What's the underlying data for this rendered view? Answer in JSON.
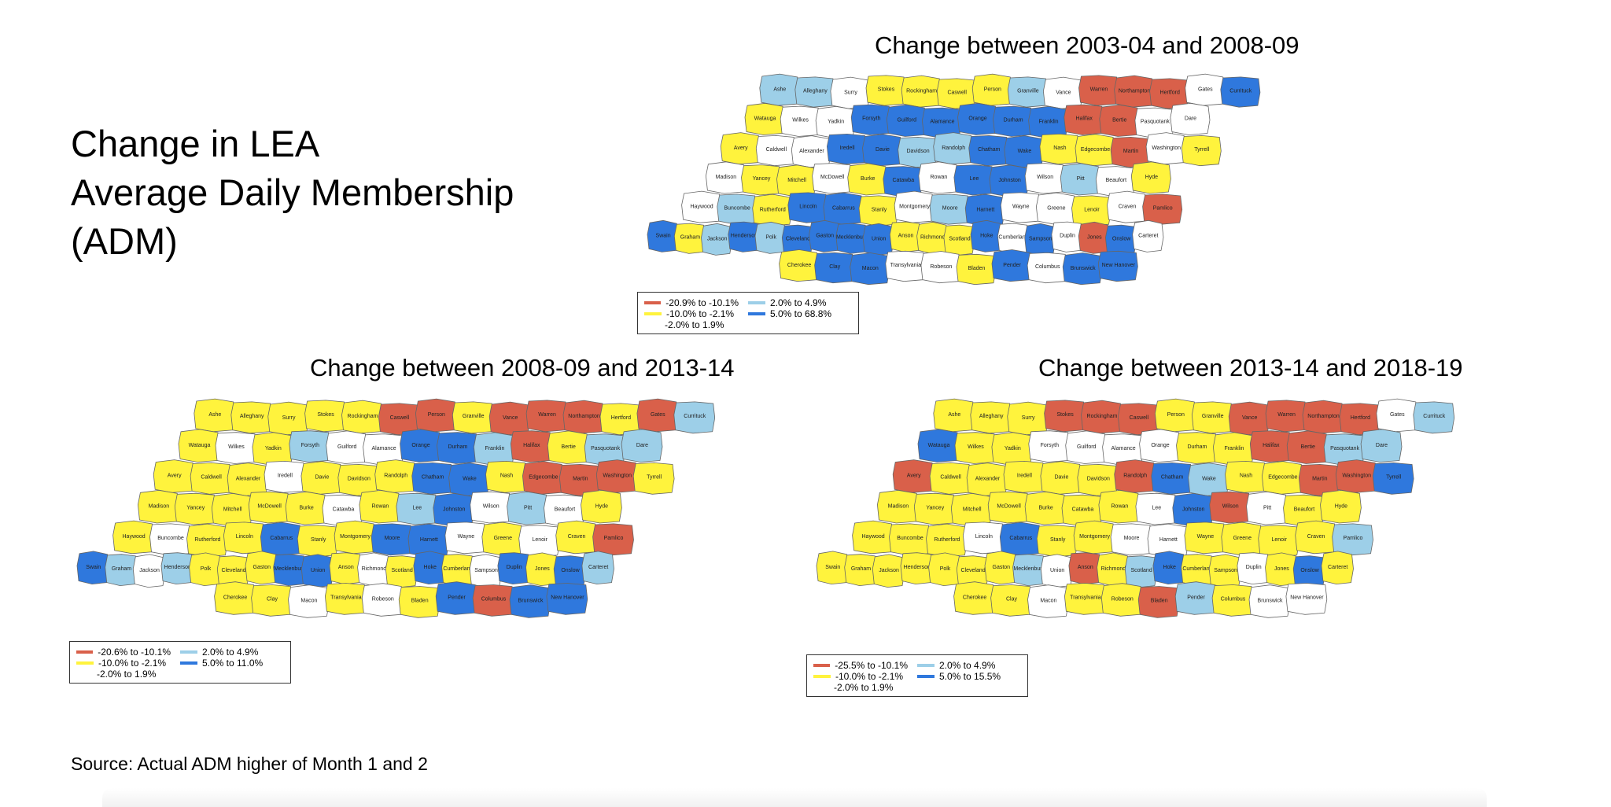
{
  "slide": {
    "title_lines": [
      "Change in LEA",
      "Average Daily Membership",
      "(ADM)"
    ],
    "source": "Source: Actual ADM higher of Month 1 and 2"
  },
  "colors": {
    "red": "#d9604a",
    "yellow": "#fff33d",
    "white": "#ffffff",
    "light_blue": "#9dcfe8",
    "blue": "#2f78dd"
  },
  "maps": [
    {
      "title": "Change between 2003-04 and  2008-09",
      "legend": {
        "red": "-20.9%  to  -10.1%",
        "light_blue": "2.0%  to  4.9%",
        "yellow": "-10.0%  to  -2.1%",
        "blue": "5.0%  to  68.8%",
        "white": "-2.0%  to  1.9%"
      },
      "counties": [
        [
          "Ashe",
          "L"
        ],
        [
          "Alleghany",
          "L"
        ],
        [
          "Surry",
          "W"
        ],
        [
          "Stokes",
          "Y"
        ],
        [
          "Rockingham",
          "Y"
        ],
        [
          "Caswell",
          "Y"
        ],
        [
          "Person",
          "Y"
        ],
        [
          "Granville",
          "L"
        ],
        [
          "Vance",
          "W"
        ],
        [
          "Warren",
          "R"
        ],
        [
          "Northampton",
          "R"
        ],
        [
          "Hertford",
          "R"
        ],
        [
          "Gates",
          "W"
        ],
        [
          "Currituck",
          "B"
        ],
        [
          "Watauga",
          "Y"
        ],
        [
          "Wilkes",
          "W"
        ],
        [
          "Yadkin",
          "W"
        ],
        [
          "Forsyth",
          "B"
        ],
        [
          "Guilford",
          "B"
        ],
        [
          "Alamance",
          "B"
        ],
        [
          "Orange",
          "B"
        ],
        [
          "Durham",
          "B"
        ],
        [
          "Franklin",
          "B"
        ],
        [
          "Halifax",
          "R"
        ],
        [
          "Bertie",
          "R"
        ],
        [
          "Pasquotank",
          "W"
        ],
        [
          "Dare",
          "W"
        ],
        [
          "Avery",
          "Y"
        ],
        [
          "Caldwell",
          "W"
        ],
        [
          "Alexander",
          "W"
        ],
        [
          "Iredell",
          "B"
        ],
        [
          "Davie",
          "B"
        ],
        [
          "Davidson",
          "L"
        ],
        [
          "Randolph",
          "L"
        ],
        [
          "Chatham",
          "B"
        ],
        [
          "Wake",
          "B"
        ],
        [
          "Nash",
          "Y"
        ],
        [
          "Edgecombe",
          "Y"
        ],
        [
          "Martin",
          "R"
        ],
        [
          "Washington",
          "W"
        ],
        [
          "Tyrrell",
          "Y"
        ],
        [
          "Madison",
          "W"
        ],
        [
          "Yancey",
          "Y"
        ],
        [
          "Mitchell",
          "Y"
        ],
        [
          "McDowell",
          "W"
        ],
        [
          "Burke",
          "Y"
        ],
        [
          "Catawba",
          "B"
        ],
        [
          "Rowan",
          "W"
        ],
        [
          "Lee",
          "B"
        ],
        [
          "Johnston",
          "B"
        ],
        [
          "Wilson",
          "W"
        ],
        [
          "Pitt",
          "L"
        ],
        [
          "Beaufort",
          "W"
        ],
        [
          "Hyde",
          "Y"
        ],
        [
          "Haywood",
          "W"
        ],
        [
          "Buncombe",
          "L"
        ],
        [
          "Rutherford",
          "Y"
        ],
        [
          "Lincoln",
          "B"
        ],
        [
          "Cabarrus",
          "B"
        ],
        [
          "Stanly",
          "Y"
        ],
        [
          "Montgomery",
          "W"
        ],
        [
          "Moore",
          "L"
        ],
        [
          "Harnett",
          "B"
        ],
        [
          "Wayne",
          "W"
        ],
        [
          "Greene",
          "W"
        ],
        [
          "Lenoir",
          "Y"
        ],
        [
          "Craven",
          "W"
        ],
        [
          "Pamlico",
          "R"
        ],
        [
          "Swain",
          "B"
        ],
        [
          "Graham",
          "Y"
        ],
        [
          "Jackson",
          "L"
        ],
        [
          "Henderson",
          "B"
        ],
        [
          "Polk",
          "L"
        ],
        [
          "Cleveland",
          "B"
        ],
        [
          "Gaston",
          "B"
        ],
        [
          "Mecklenburg",
          "B"
        ],
        [
          "Union",
          "B"
        ],
        [
          "Anson",
          "Y"
        ],
        [
          "Richmond",
          "Y"
        ],
        [
          "Scotland",
          "Y"
        ],
        [
          "Hoke",
          "B"
        ],
        [
          "Cumberland",
          "W"
        ],
        [
          "Sampson",
          "B"
        ],
        [
          "Duplin",
          "W"
        ],
        [
          "Jones",
          "R"
        ],
        [
          "Onslow",
          "B"
        ],
        [
          "Carteret",
          "W"
        ],
        [
          "Cherokee",
          "Y"
        ],
        [
          "Clay",
          "B"
        ],
        [
          "Macon",
          "B"
        ],
        [
          "Transylvania",
          "W"
        ],
        [
          "Robeson",
          "W"
        ],
        [
          "Bladen",
          "Y"
        ],
        [
          "Pender",
          "B"
        ],
        [
          "Columbus",
          "W"
        ],
        [
          "Brunswick",
          "B"
        ],
        [
          "New Hanover",
          "B"
        ]
      ]
    },
    {
      "title": "Change between 2008-09 and 2013-14",
      "legend": {
        "red": "-20.6%  to  -10.1%",
        "light_blue": "2.0%  to  4.9%",
        "yellow": "-10.0%  to  -2.1%",
        "blue": "5.0%  to  11.0%",
        "white": "-2.0%  to  1.9%"
      },
      "counties": [
        [
          "Ashe",
          "Y"
        ],
        [
          "Alleghany",
          "Y"
        ],
        [
          "Surry",
          "Y"
        ],
        [
          "Stokes",
          "Y"
        ],
        [
          "Rockingham",
          "Y"
        ],
        [
          "Caswell",
          "R"
        ],
        [
          "Person",
          "R"
        ],
        [
          "Granville",
          "Y"
        ],
        [
          "Vance",
          "R"
        ],
        [
          "Warren",
          "R"
        ],
        [
          "Northampton",
          "R"
        ],
        [
          "Hertford",
          "Y"
        ],
        [
          "Gates",
          "R"
        ],
        [
          "Currituck",
          "L"
        ],
        [
          "Watauga",
          "Y"
        ],
        [
          "Wilkes",
          "W"
        ],
        [
          "Yadkin",
          "Y"
        ],
        [
          "Forsyth",
          "L"
        ],
        [
          "Guilford",
          "W"
        ],
        [
          "Alamance",
          "W"
        ],
        [
          "Orange",
          "B"
        ],
        [
          "Durham",
          "B"
        ],
        [
          "Franklin",
          "L"
        ],
        [
          "Halifax",
          "R"
        ],
        [
          "Bertie",
          "Y"
        ],
        [
          "Pasquotank",
          "L"
        ],
        [
          "Dare",
          "L"
        ],
        [
          "Avery",
          "Y"
        ],
        [
          "Caldwell",
          "Y"
        ],
        [
          "Alexander",
          "Y"
        ],
        [
          "Iredell",
          "W"
        ],
        [
          "Davie",
          "Y"
        ],
        [
          "Davidson",
          "Y"
        ],
        [
          "Randolph",
          "Y"
        ],
        [
          "Chatham",
          "B"
        ],
        [
          "Wake",
          "B"
        ],
        [
          "Nash",
          "Y"
        ],
        [
          "Edgecombe",
          "R"
        ],
        [
          "Martin",
          "R"
        ],
        [
          "Washington",
          "R"
        ],
        [
          "Tyrrell",
          "Y"
        ],
        [
          "Madison",
          "Y"
        ],
        [
          "Yancey",
          "Y"
        ],
        [
          "Mitchell",
          "Y"
        ],
        [
          "McDowell",
          "Y"
        ],
        [
          "Burke",
          "Y"
        ],
        [
          "Catawba",
          "W"
        ],
        [
          "Rowan",
          "Y"
        ],
        [
          "Lee",
          "L"
        ],
        [
          "Johnston",
          "B"
        ],
        [
          "Wilson",
          "W"
        ],
        [
          "Pitt",
          "L"
        ],
        [
          "Beaufort",
          "W"
        ],
        [
          "Hyde",
          "Y"
        ],
        [
          "Haywood",
          "Y"
        ],
        [
          "Buncombe",
          "W"
        ],
        [
          "Rutherford",
          "Y"
        ],
        [
          "Lincoln",
          "Y"
        ],
        [
          "Cabarrus",
          "B"
        ],
        [
          "Stanly",
          "Y"
        ],
        [
          "Montgomery",
          "Y"
        ],
        [
          "Moore",
          "B"
        ],
        [
          "Harnett",
          "B"
        ],
        [
          "Wayne",
          "W"
        ],
        [
          "Greene",
          "Y"
        ],
        [
          "Lenoir",
          "W"
        ],
        [
          "Craven",
          "Y"
        ],
        [
          "Pamlico",
          "R"
        ],
        [
          "Swain",
          "B"
        ],
        [
          "Graham",
          "L"
        ],
        [
          "Jackson",
          "W"
        ],
        [
          "Henderson",
          "L"
        ],
        [
          "Polk",
          "Y"
        ],
        [
          "Cleveland",
          "Y"
        ],
        [
          "Gaston",
          "Y"
        ],
        [
          "Mecklenburg",
          "B"
        ],
        [
          "Union",
          "B"
        ],
        [
          "Anson",
          "Y"
        ],
        [
          "Richmond",
          "W"
        ],
        [
          "Scotland",
          "Y"
        ],
        [
          "Hoke",
          "B"
        ],
        [
          "Cumberland",
          "Y"
        ],
        [
          "Sampson",
          "W"
        ],
        [
          "Duplin",
          "B"
        ],
        [
          "Jones",
          "Y"
        ],
        [
          "Onslow",
          "B"
        ],
        [
          "Carteret",
          "L"
        ],
        [
          "Cherokee",
          "Y"
        ],
        [
          "Clay",
          "Y"
        ],
        [
          "Macon",
          "W"
        ],
        [
          "Transylvania",
          "Y"
        ],
        [
          "Robeson",
          "W"
        ],
        [
          "Bladen",
          "Y"
        ],
        [
          "Pender",
          "B"
        ],
        [
          "Columbus",
          "R"
        ],
        [
          "Brunswick",
          "B"
        ],
        [
          "New Hanover",
          "B"
        ]
      ]
    },
    {
      "title": "Change between 2013-14 and 2018-19",
      "legend": {
        "red": "-25.5%  to  -10.1%",
        "light_blue": "2.0%  to  4.9%",
        "yellow": "-10.0%  to  -2.1%",
        "blue": "5.0%  to  15.5%",
        "white": "-2.0%  to  1.9%"
      },
      "counties": [
        [
          "Ashe",
          "Y"
        ],
        [
          "Alleghany",
          "Y"
        ],
        [
          "Surry",
          "Y"
        ],
        [
          "Stokes",
          "R"
        ],
        [
          "Rockingham",
          "R"
        ],
        [
          "Caswell",
          "R"
        ],
        [
          "Person",
          "Y"
        ],
        [
          "Granville",
          "Y"
        ],
        [
          "Vance",
          "R"
        ],
        [
          "Warren",
          "R"
        ],
        [
          "Northampton",
          "R"
        ],
        [
          "Hertford",
          "R"
        ],
        [
          "Gates",
          "W"
        ],
        [
          "Currituck",
          "L"
        ],
        [
          "Watauga",
          "B"
        ],
        [
          "Wilkes",
          "Y"
        ],
        [
          "Yadkin",
          "Y"
        ],
        [
          "Forsyth",
          "W"
        ],
        [
          "Guilford",
          "W"
        ],
        [
          "Alamance",
          "W"
        ],
        [
          "Orange",
          "W"
        ],
        [
          "Durham",
          "Y"
        ],
        [
          "Franklin",
          "Y"
        ],
        [
          "Halifax",
          "R"
        ],
        [
          "Bertie",
          "R"
        ],
        [
          "Pasquotank",
          "L"
        ],
        [
          "Dare",
          "L"
        ],
        [
          "Avery",
          "R"
        ],
        [
          "Caldwell",
          "Y"
        ],
        [
          "Alexander",
          "Y"
        ],
        [
          "Iredell",
          "Y"
        ],
        [
          "Davie",
          "Y"
        ],
        [
          "Davidson",
          "Y"
        ],
        [
          "Randolph",
          "R"
        ],
        [
          "Chatham",
          "B"
        ],
        [
          "Wake",
          "L"
        ],
        [
          "Nash",
          "Y"
        ],
        [
          "Edgecombe",
          "Y"
        ],
        [
          "Martin",
          "R"
        ],
        [
          "Washington",
          "R"
        ],
        [
          "Tyrrell",
          "B"
        ],
        [
          "Madison",
          "Y"
        ],
        [
          "Yancey",
          "Y"
        ],
        [
          "Mitchell",
          "Y"
        ],
        [
          "McDowell",
          "Y"
        ],
        [
          "Burke",
          "Y"
        ],
        [
          "Catawba",
          "Y"
        ],
        [
          "Rowan",
          "Y"
        ],
        [
          "Lee",
          "W"
        ],
        [
          "Johnston",
          "B"
        ],
        [
          "Wilson",
          "R"
        ],
        [
          "Pitt",
          "W"
        ],
        [
          "Beaufort",
          "Y"
        ],
        [
          "Hyde",
          "Y"
        ],
        [
          "Haywood",
          "Y"
        ],
        [
          "Buncombe",
          "Y"
        ],
        [
          "Rutherford",
          "Y"
        ],
        [
          "Lincoln",
          "W"
        ],
        [
          "Cabarrus",
          "B"
        ],
        [
          "Stanly",
          "Y"
        ],
        [
          "Montgomery",
          "Y"
        ],
        [
          "Moore",
          "W"
        ],
        [
          "Harnett",
          "W"
        ],
        [
          "Wayne",
          "Y"
        ],
        [
          "Greene",
          "Y"
        ],
        [
          "Lenoir",
          "Y"
        ],
        [
          "Craven",
          "Y"
        ],
        [
          "Pamlico",
          "L"
        ],
        [
          "Swain",
          "Y"
        ],
        [
          "Graham",
          "Y"
        ],
        [
          "Jackson",
          "Y"
        ],
        [
          "Henderson",
          "Y"
        ],
        [
          "Polk",
          "Y"
        ],
        [
          "Cleveland",
          "Y"
        ],
        [
          "Gaston",
          "Y"
        ],
        [
          "Mecklenburg",
          "L"
        ],
        [
          "Union",
          "W"
        ],
        [
          "Anson",
          "R"
        ],
        [
          "Richmond",
          "Y"
        ],
        [
          "Scotland",
          "L"
        ],
        [
          "Hoke",
          "B"
        ],
        [
          "Cumberland",
          "Y"
        ],
        [
          "Sampson",
          "Y"
        ],
        [
          "Duplin",
          "W"
        ],
        [
          "Jones",
          "Y"
        ],
        [
          "Onslow",
          "B"
        ],
        [
          "Carteret",
          "Y"
        ],
        [
          "Cherokee",
          "Y"
        ],
        [
          "Clay",
          "Y"
        ],
        [
          "Macon",
          "W"
        ],
        [
          "Transylvania",
          "Y"
        ],
        [
          "Robeson",
          "Y"
        ],
        [
          "Bladen",
          "R"
        ],
        [
          "Pender",
          "L"
        ],
        [
          "Columbus",
          "Y"
        ],
        [
          "Brunswick",
          "W"
        ],
        [
          "New Hanover",
          "W"
        ]
      ]
    }
  ]
}
